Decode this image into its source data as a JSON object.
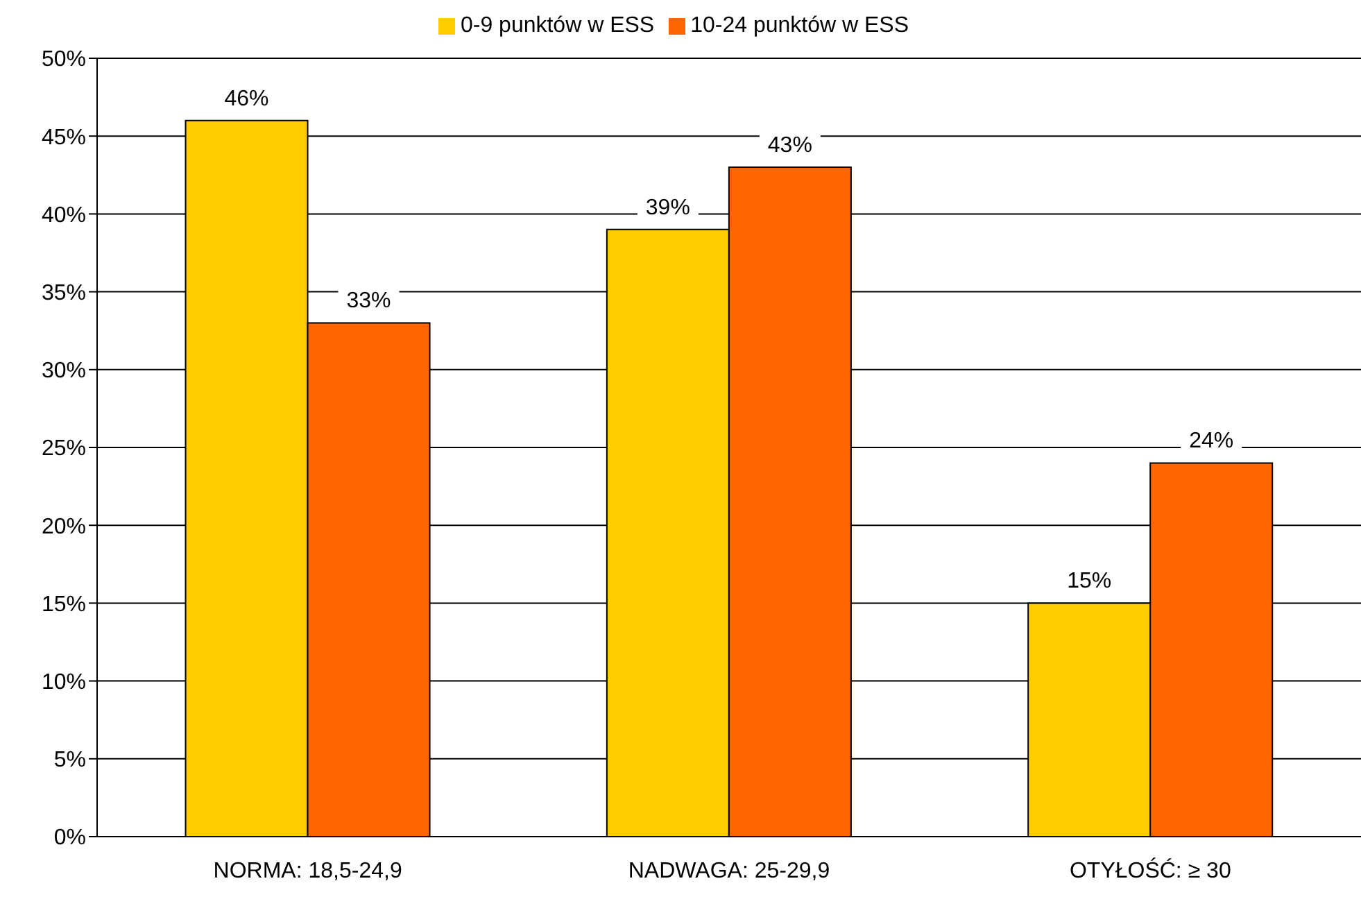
{
  "chart_data": {
    "type": "bar",
    "categories": [
      "NORMA: 18,5-24,9",
      "NADWAGA: 25-29,9",
      "OTYŁOŚĆ: ≥ 30"
    ],
    "series": [
      {
        "name": "0-9 punktów w ESS",
        "color": "#ffcc00",
        "values": [
          46,
          39,
          15
        ],
        "value_labels": [
          "46%",
          "39%",
          "15%"
        ]
      },
      {
        "name": "10-24 punktów w ESS",
        "color": "#ff6600",
        "values": [
          33,
          43,
          24
        ],
        "value_labels": [
          "33%",
          "43%",
          "24%"
        ]
      }
    ],
    "ylim": [
      0,
      50
    ],
    "yticks": [
      {
        "value": 0,
        "label": "0%"
      },
      {
        "value": 5,
        "label": "5%"
      },
      {
        "value": 10,
        "label": "10%"
      },
      {
        "value": 15,
        "label": "15%"
      },
      {
        "value": 20,
        "label": "20%"
      },
      {
        "value": 25,
        "label": "25%"
      },
      {
        "value": 30,
        "label": "30%"
      },
      {
        "value": 35,
        "label": "35%"
      },
      {
        "value": 40,
        "label": "40%"
      },
      {
        "value": 45,
        "label": "45%"
      },
      {
        "value": 50,
        "label": "50%"
      }
    ],
    "grid": "y",
    "legend": "top"
  }
}
